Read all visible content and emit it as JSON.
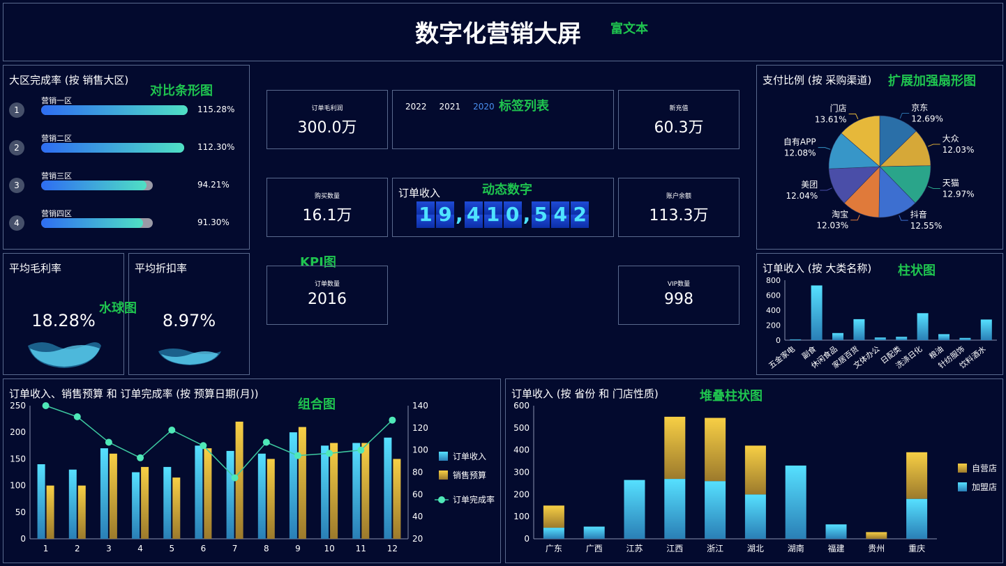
{
  "header": {
    "title": "数字化营销大屏",
    "note": "富文本"
  },
  "region": {
    "title": "大区完成率 (按 销售大区)",
    "note": "对比条形图",
    "items": [
      {
        "rank": "1",
        "name": "营销一区",
        "pct": "115.28%",
        "value": 115.28
      },
      {
        "rank": "2",
        "name": "营销二区",
        "pct": "112.30%",
        "value": 112.3
      },
      {
        "rank": "3",
        "name": "营销三区",
        "pct": "94.21%",
        "value": 94.21
      },
      {
        "rank": "4",
        "name": "营销四区",
        "pct": "91.30%",
        "value": 91.3
      }
    ]
  },
  "kpis": {
    "profit": {
      "label": "订单毛利润",
      "value": "300.0万"
    },
    "recharge": {
      "label": "新充值",
      "value": "60.3万"
    },
    "purchase": {
      "label": "购买数量",
      "value": "16.1万"
    },
    "balance": {
      "label": "账户余额",
      "value": "113.3万"
    },
    "orders": {
      "label": "订单数量",
      "value": "2016"
    },
    "vip": {
      "label": "VIP数量",
      "value": "998"
    },
    "note": "KPI图"
  },
  "tabs": {
    "items": [
      "2022",
      "2021",
      "2020"
    ],
    "active": "2020",
    "note": "标签列表"
  },
  "dynamic": {
    "label": "订单收入",
    "digits": [
      "1",
      "9",
      ",",
      "4",
      "1",
      "0",
      ",",
      "5",
      "4",
      "2"
    ],
    "note": "动态数字"
  },
  "gauges": {
    "margin": {
      "title": "平均毛利率",
      "value": "18.28%",
      "level": 0.1828
    },
    "discount": {
      "title": "平均折扣率",
      "value": "8.97%",
      "level": 0.0897
    },
    "note": "水球图"
  },
  "colors": {
    "accent_note": "#1fc44f",
    "bar_cyan": "#4fd8f6",
    "bar_gold": "#f5c842",
    "line": "#3dc9a0"
  },
  "chart_data": [
    {
      "id": "pie",
      "type": "pie",
      "title": "支付比例 (按 采购渠道)",
      "note": "扩展加强扇形图",
      "slices": [
        {
          "name": "京东",
          "label": "12.69%",
          "value": 12.69,
          "color": "#2a6fa8"
        },
        {
          "name": "大众",
          "label": "12.03%",
          "value": 12.03,
          "color": "#d6a838"
        },
        {
          "name": "天猫",
          "label": "12.97%",
          "value": 12.97,
          "color": "#2aa58a"
        },
        {
          "name": "抖音",
          "label": "12.55%",
          "value": 12.55,
          "color": "#3d6fd0"
        },
        {
          "name": "淘宝",
          "label": "12.03%",
          "value": 12.03,
          "color": "#e07a3a"
        },
        {
          "name": "美团",
          "label": "12.04%",
          "value": 12.04,
          "color": "#4a4ea8"
        },
        {
          "name": "自有APP",
          "label": "12.08%",
          "value": 12.08,
          "color": "#3796c8"
        },
        {
          "name": "门店",
          "label": "13.61%",
          "value": 13.61,
          "color": "#e6b83a"
        }
      ]
    },
    {
      "id": "category",
      "type": "bar",
      "title": "订单收入 (按 大类名称)",
      "note": "柱状图",
      "categories": [
        "五金家电",
        "副食",
        "休闲食品",
        "家居百货",
        "文体办公",
        "日配类",
        "洗涤日化",
        "粮油",
        "针纺服饰",
        "饮料酒水"
      ],
      "values": [
        10,
        730,
        95,
        280,
        35,
        45,
        360,
        80,
        30,
        275
      ],
      "yticks": [
        "0",
        "200",
        "400",
        "600",
        "800"
      ],
      "ylim": [
        0,
        800
      ]
    },
    {
      "id": "combo",
      "type": "bar",
      "title": "订单收入、销售预算 和 订单完成率 (按 预算日期(月))",
      "note": "组合图",
      "categories": [
        "1",
        "2",
        "3",
        "4",
        "5",
        "6",
        "7",
        "8",
        "9",
        "10",
        "11",
        "12"
      ],
      "series": [
        {
          "name": "订单收入",
          "type": "bar",
          "values": [
            140,
            130,
            170,
            125,
            135,
            175,
            165,
            160,
            200,
            175,
            180,
            190
          ]
        },
        {
          "name": "销售预算",
          "type": "bar",
          "values": [
            100,
            100,
            160,
            135,
            115,
            170,
            220,
            150,
            210,
            180,
            180,
            150
          ]
        },
        {
          "name": "订单完成率",
          "type": "line",
          "axis": "right",
          "values": [
            140,
            130,
            107,
            93,
            118,
            104,
            75,
            107,
            95,
            97,
            100,
            127
          ]
        }
      ],
      "yticks": [
        "0",
        "50",
        "100",
        "150",
        "200",
        "250"
      ],
      "y2ticks": [
        "20",
        "40",
        "60",
        "80",
        "100",
        "120",
        "140"
      ],
      "ylim": [
        0,
        250
      ],
      "y2lim": [
        20,
        140
      ]
    },
    {
      "id": "stack",
      "type": "bar",
      "title": "订单收入 (按 省份 和 门店性质)",
      "note": "堆叠柱状图",
      "categories": [
        "广东",
        "广西",
        "江苏",
        "江西",
        "浙江",
        "湖北",
        "湖南",
        "福建",
        "贵州",
        "重庆"
      ],
      "series": [
        {
          "name": "加盟店",
          "values": [
            50,
            55,
            265,
            270,
            260,
            200,
            330,
            65,
            0,
            180
          ]
        },
        {
          "name": "自营店",
          "values": [
            100,
            0,
            0,
            280,
            285,
            220,
            0,
            0,
            30,
            210
          ]
        }
      ],
      "yticks": [
        "0",
        "100",
        "200",
        "300",
        "400",
        "500",
        "600"
      ],
      "ylim": [
        0,
        600
      ]
    }
  ]
}
